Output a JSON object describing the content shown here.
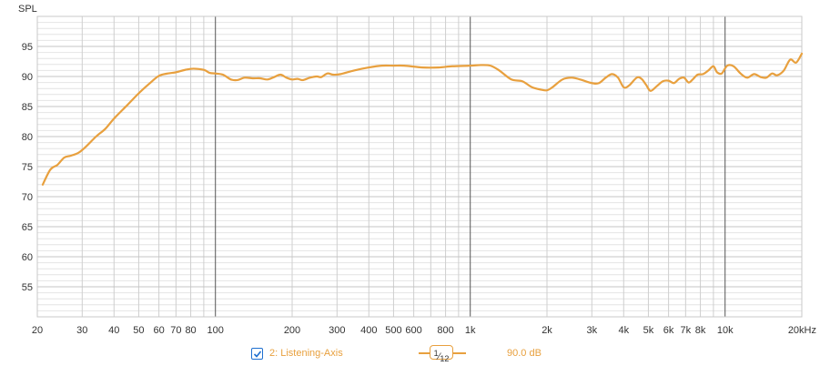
{
  "chart_data": {
    "type": "line",
    "x_scale": "log",
    "y_axis_title": "SPL",
    "xlim": [
      20,
      20000
    ],
    "ylim": [
      50,
      100
    ],
    "y_ticks": [
      55,
      60,
      65,
      70,
      75,
      80,
      85,
      90,
      95
    ],
    "x_ticks": [
      {
        "v": 20,
        "label": "20"
      },
      {
        "v": 30,
        "label": "30"
      },
      {
        "v": 40,
        "label": "40"
      },
      {
        "v": 50,
        "label": "50"
      },
      {
        "v": 60,
        "label": "60"
      },
      {
        "v": 70,
        "label": "70"
      },
      {
        "v": 80,
        "label": "80"
      },
      {
        "v": 100,
        "label": "100"
      },
      {
        "v": 200,
        "label": "200"
      },
      {
        "v": 300,
        "label": "300"
      },
      {
        "v": 400,
        "label": "400"
      },
      {
        "v": 500,
        "label": "500"
      },
      {
        "v": 600,
        "label": "600"
      },
      {
        "v": 800,
        "label": "800"
      },
      {
        "v": 1000,
        "label": "1k"
      },
      {
        "v": 2000,
        "label": "2k"
      },
      {
        "v": 3000,
        "label": "3k"
      },
      {
        "v": 4000,
        "label": "4k"
      },
      {
        "v": 5000,
        "label": "5k"
      },
      {
        "v": 6000,
        "label": "6k"
      },
      {
        "v": 7000,
        "label": "7k"
      },
      {
        "v": 8000,
        "label": "8k"
      },
      {
        "v": 10000,
        "label": "10k"
      },
      {
        "v": 20000,
        "label": "20kHz"
      }
    ],
    "grid": true,
    "line_color": "#e8a03e",
    "series": [
      {
        "name": "2: Listening-Axis",
        "points": [
          [
            21,
            72.0
          ],
          [
            22.5,
            74.5
          ],
          [
            24,
            75.3
          ],
          [
            25.5,
            76.5
          ],
          [
            27,
            76.8
          ],
          [
            29,
            77.3
          ],
          [
            31,
            78.3
          ],
          [
            34,
            80.0
          ],
          [
            37,
            81.3
          ],
          [
            40,
            83.0
          ],
          [
            45,
            85.2
          ],
          [
            50,
            87.2
          ],
          [
            55,
            88.8
          ],
          [
            60,
            90.1
          ],
          [
            65,
            90.5
          ],
          [
            70,
            90.7
          ],
          [
            76,
            91.1
          ],
          [
            82,
            91.3
          ],
          [
            90,
            91.1
          ],
          [
            95,
            90.6
          ],
          [
            100,
            90.5
          ],
          [
            107,
            90.3
          ],
          [
            115,
            89.5
          ],
          [
            122,
            89.4
          ],
          [
            130,
            89.8
          ],
          [
            140,
            89.7
          ],
          [
            150,
            89.7
          ],
          [
            160,
            89.5
          ],
          [
            170,
            89.9
          ],
          [
            180,
            90.3
          ],
          [
            190,
            89.8
          ],
          [
            200,
            89.5
          ],
          [
            210,
            89.6
          ],
          [
            220,
            89.4
          ],
          [
            235,
            89.8
          ],
          [
            250,
            90.0
          ],
          [
            260,
            89.9
          ],
          [
            275,
            90.5
          ],
          [
            290,
            90.3
          ],
          [
            310,
            90.4
          ],
          [
            350,
            91.0
          ],
          [
            400,
            91.5
          ],
          [
            450,
            91.8
          ],
          [
            500,
            91.8
          ],
          [
            550,
            91.8
          ],
          [
            650,
            91.5
          ],
          [
            750,
            91.5
          ],
          [
            850,
            91.7
          ],
          [
            1000,
            91.8
          ],
          [
            1100,
            91.9
          ],
          [
            1200,
            91.8
          ],
          [
            1300,
            91.0
          ],
          [
            1450,
            89.5
          ],
          [
            1600,
            89.2
          ],
          [
            1750,
            88.2
          ],
          [
            1900,
            87.8
          ],
          [
            2000,
            87.7
          ],
          [
            2100,
            88.2
          ],
          [
            2300,
            89.5
          ],
          [
            2500,
            89.8
          ],
          [
            2700,
            89.5
          ],
          [
            3000,
            88.9
          ],
          [
            3200,
            88.9
          ],
          [
            3400,
            89.8
          ],
          [
            3600,
            90.4
          ],
          [
            3800,
            89.8
          ],
          [
            4000,
            88.2
          ],
          [
            4200,
            88.5
          ],
          [
            4500,
            89.8
          ],
          [
            4700,
            89.6
          ],
          [
            4900,
            88.6
          ],
          [
            5100,
            87.6
          ],
          [
            5400,
            88.4
          ],
          [
            5700,
            89.2
          ],
          [
            6000,
            89.3
          ],
          [
            6300,
            88.9
          ],
          [
            6600,
            89.6
          ],
          [
            6900,
            89.8
          ],
          [
            7200,
            89.0
          ],
          [
            7500,
            89.6
          ],
          [
            7800,
            90.3
          ],
          [
            8200,
            90.4
          ],
          [
            8600,
            91.0
          ],
          [
            9000,
            91.7
          ],
          [
            9300,
            90.7
          ],
          [
            9700,
            90.5
          ],
          [
            10200,
            91.8
          ],
          [
            10800,
            91.7
          ],
          [
            11500,
            90.5
          ],
          [
            12200,
            89.8
          ],
          [
            13000,
            90.4
          ],
          [
            13800,
            89.9
          ],
          [
            14500,
            89.8
          ],
          [
            15300,
            90.5
          ],
          [
            16000,
            90.2
          ],
          [
            17000,
            91.0
          ],
          [
            18000,
            92.8
          ],
          [
            19000,
            92.3
          ],
          [
            20000,
            93.8
          ]
        ]
      }
    ]
  },
  "legend": {
    "checked": true,
    "series_name": "2: Listening-Axis",
    "smoothing_num": "1",
    "smoothing_den": "12",
    "level": "90.0 dB"
  }
}
